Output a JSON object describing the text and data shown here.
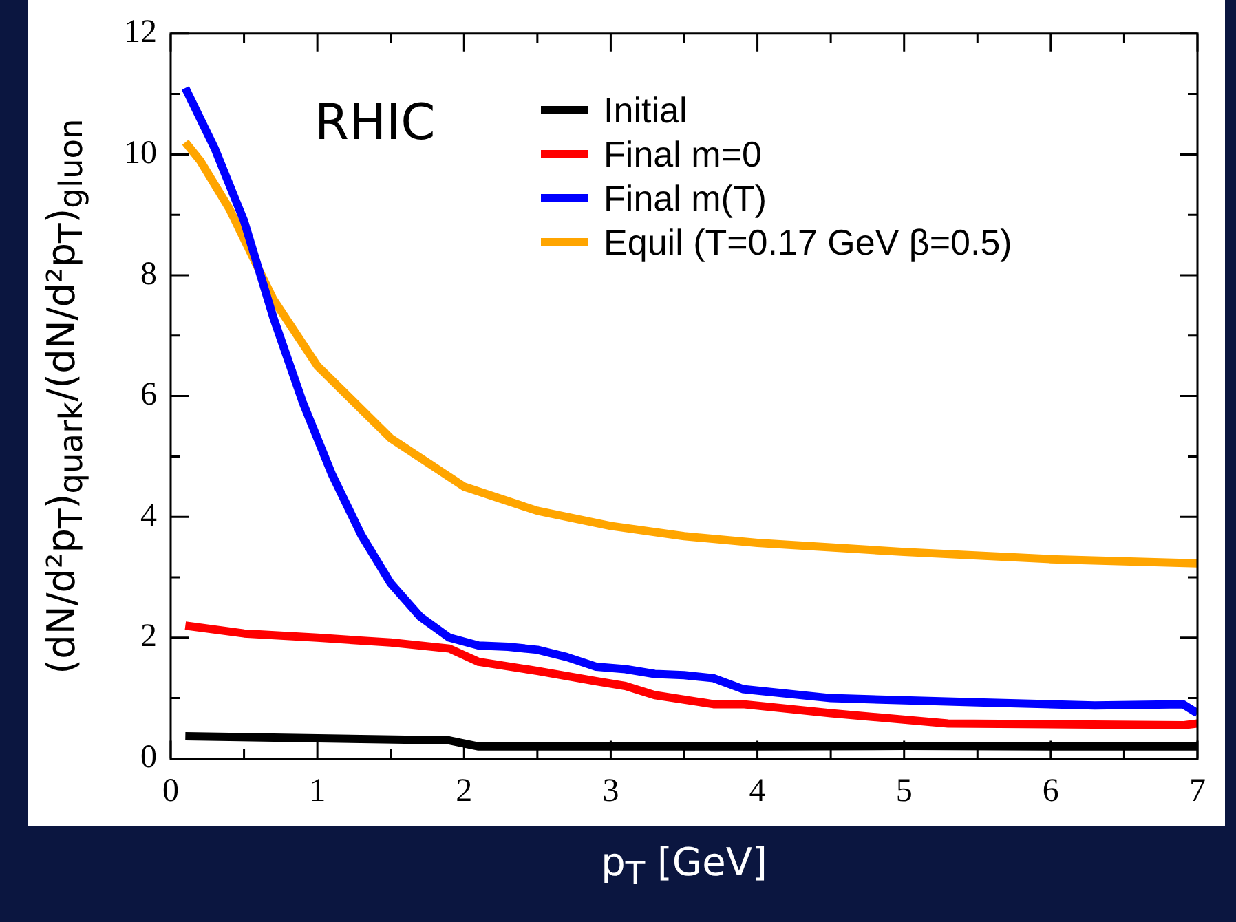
{
  "chart_data": {
    "type": "line",
    "xlabel": "p$_{T}$ [GeV]",
    "ylabel": "(dN/d²p$_{T}$)$_{quark}$/(dN/d²p$_{T}$)$_{gluon}$",
    "annotations": [
      "RHIC"
    ],
    "xlim": [
      0,
      7
    ],
    "ylim": [
      0,
      12
    ],
    "xticks": [
      0,
      {
        "value": 0.5,
        "label": null
      },
      1,
      {
        "value": 1.5,
        "label": null
      },
      2,
      {
        "value": 2.5,
        "label": null
      },
      3,
      {
        "value": 3.5,
        "label": null
      },
      4,
      {
        "value": 4.5,
        "label": null
      },
      5,
      {
        "value": 5.5,
        "label": null
      },
      6,
      {
        "value": 6.5,
        "label": null
      },
      7
    ],
    "yticks": [
      0,
      {
        "value": 1,
        "label": null
      },
      2,
      {
        "value": 3,
        "label": null
      },
      4,
      {
        "value": 5,
        "label": null
      },
      6,
      {
        "value": 7,
        "label": null
      },
      8,
      {
        "value": 9,
        "label": null
      },
      10,
      {
        "value": 11,
        "label": null
      },
      12
    ],
    "legend": "top right",
    "marker": "none",
    "grid": false,
    "series": [
      {
        "name": "Initial",
        "color": "#000000",
        "x": [
          0.1,
          1.9,
          2.1,
          3.0,
          4.0,
          5.0,
          6.0,
          7.0
        ],
        "values": [
          0.37,
          0.3,
          0.2,
          0.2,
          0.2,
          0.21,
          0.2,
          0.2
        ]
      },
      {
        "name": "Final m=0",
        "color": "#ff0000",
        "x": [
          0.1,
          0.5,
          1.0,
          1.5,
          1.9,
          2.1,
          2.5,
          2.9,
          3.1,
          3.3,
          3.7,
          3.9,
          4.5,
          5.3,
          6.9,
          7.0
        ],
        "values": [
          2.2,
          2.07,
          2.0,
          1.92,
          1.82,
          1.6,
          1.45,
          1.28,
          1.2,
          1.05,
          0.9,
          0.9,
          0.75,
          0.58,
          0.55,
          0.58
        ]
      },
      {
        "name": "Final m(T)",
        "color": "#0000ff",
        "x": [
          0.1,
          0.3,
          0.5,
          0.7,
          0.9,
          1.1,
          1.3,
          1.5,
          1.7,
          1.9,
          2.1,
          2.3,
          2.5,
          2.7,
          2.9,
          3.1,
          3.3,
          3.5,
          3.7,
          3.9,
          4.5,
          5.5,
          6.3,
          6.9,
          7.0
        ],
        "values": [
          11.1,
          10.1,
          8.9,
          7.3,
          5.9,
          4.7,
          3.7,
          2.9,
          2.35,
          2.0,
          1.87,
          1.85,
          1.8,
          1.68,
          1.52,
          1.48,
          1.4,
          1.38,
          1.33,
          1.15,
          1.0,
          0.93,
          0.88,
          0.9,
          0.75
        ]
      },
      {
        "name": "Equil (T=0.17 GeV β=0.5)",
        "color": "#ffa500",
        "x": [
          0.1,
          0.2,
          0.4,
          0.7,
          1.0,
          1.5,
          2.0,
          2.5,
          3.0,
          3.5,
          4.0,
          5.0,
          6.0,
          7.0
        ],
        "values": [
          10.2,
          9.9,
          9.1,
          7.6,
          6.5,
          5.3,
          4.5,
          4.1,
          3.85,
          3.68,
          3.57,
          3.42,
          3.3,
          3.23
        ]
      }
    ]
  }
}
